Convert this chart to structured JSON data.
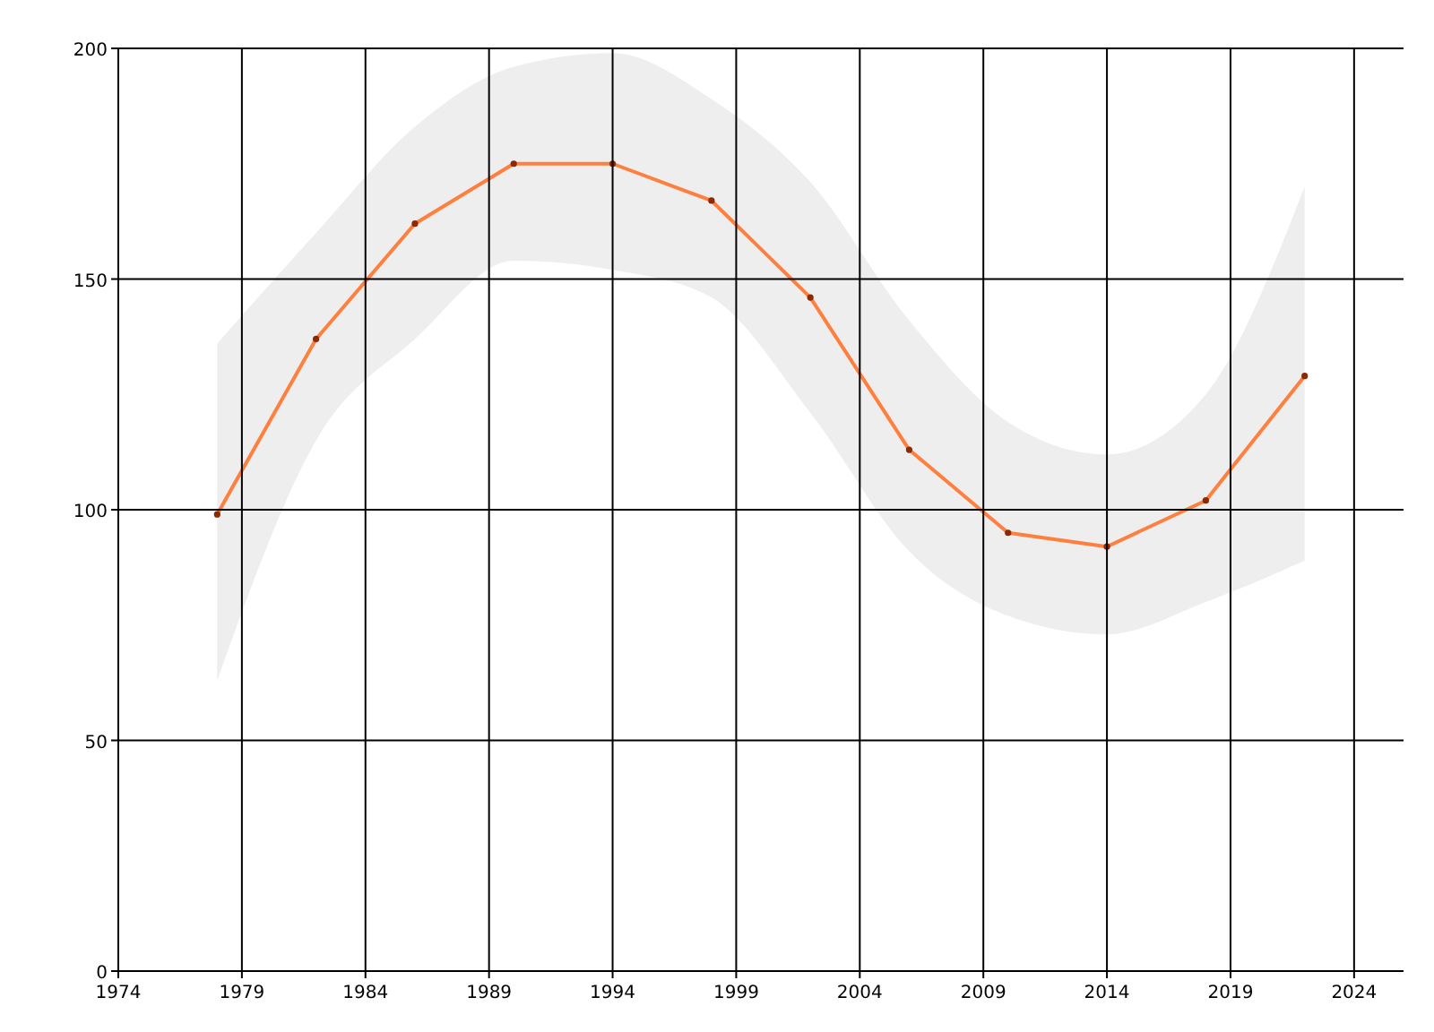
{
  "chart_data": {
    "type": "line",
    "x": [
      1978,
      1982,
      1986,
      1990,
      1994,
      1998,
      2002,
      2006,
      2010,
      2014,
      2018,
      2022
    ],
    "series": [
      {
        "color": "#ff7f3f",
        "values": [
          99,
          137,
          162,
          175,
          175,
          167,
          146,
          113,
          95,
          92,
          102,
          129
        ],
        "lower": [
          63,
          115,
          137,
          154,
          152,
          146,
          121,
          91,
          77,
          73,
          80,
          89
        ],
        "upper": [
          136,
          160,
          183,
          196,
          199,
          189,
          171,
          141,
          119,
          112,
          125,
          170
        ]
      }
    ],
    "xlim": [
      1974,
      2026
    ],
    "xticks": [
      1974,
      1979,
      1984,
      1989,
      1994,
      1999,
      2004,
      2009,
      2014,
      2019,
      2024
    ],
    "ylim": [
      0,
      200
    ],
    "yticks": [
      0,
      50,
      100,
      150,
      200
    ],
    "grid": true,
    "marker": "circle"
  }
}
